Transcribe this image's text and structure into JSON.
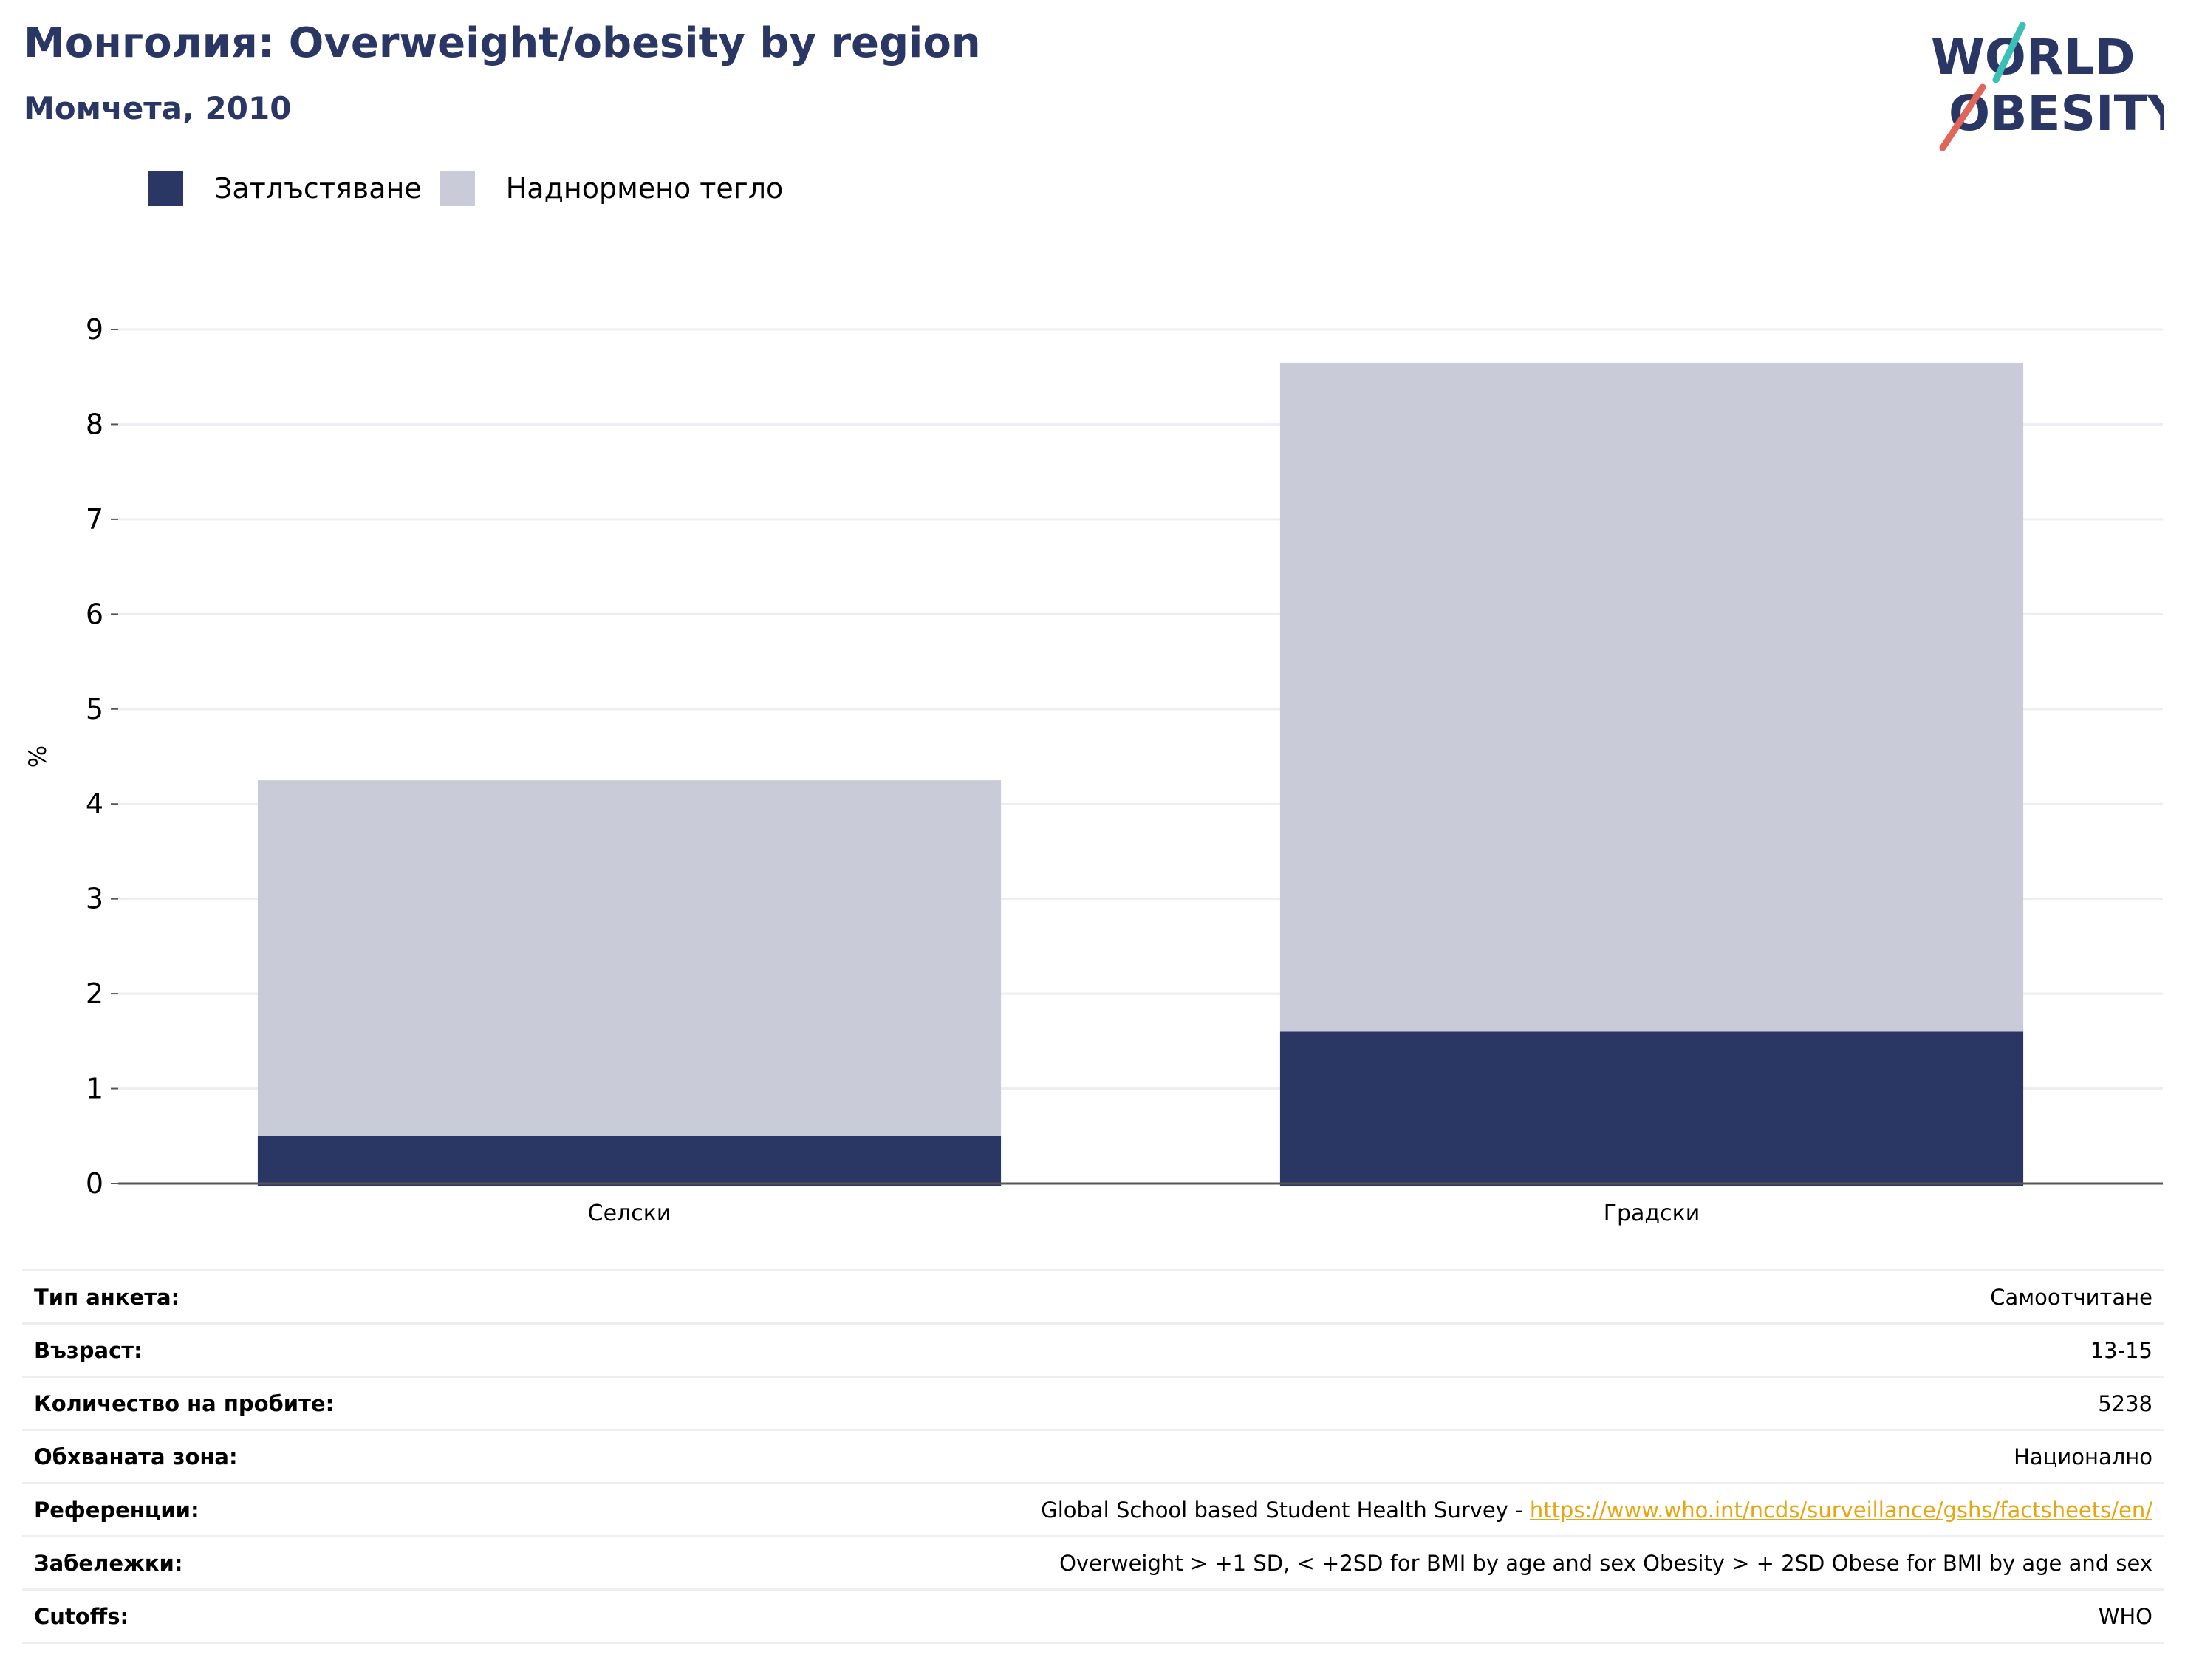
{
  "header": {
    "title": "Монголия: Overweight/obesity by region",
    "subtitle": "Момчета, 2010"
  },
  "logo": {
    "line1": "WORLD",
    "line2": "OBESITY",
    "colors": {
      "text": "#2a3664",
      "slash_top": "#3bbfb6",
      "slash_bottom": "#e0665a"
    }
  },
  "colors": {
    "obesity": "#2a3664",
    "overweight": "#c9ccd8",
    "grid": "#eceef3",
    "axis": "#555555"
  },
  "legend": {
    "items": [
      {
        "label": "Затлъстяване",
        "color": "#2a3664"
      },
      {
        "label": "Наднормено тегло",
        "color": "#c9ccd8"
      }
    ]
  },
  "chart_data": {
    "type": "bar",
    "stacked": true,
    "categories": [
      "Селски",
      "Градски"
    ],
    "series": [
      {
        "name": "Затлъстяване",
        "values": [
          0.5,
          1.6
        ]
      },
      {
        "name": "Наднормено тегло",
        "values": [
          3.75,
          7.05
        ]
      }
    ],
    "totals": [
      4.25,
      8.65
    ],
    "ylabel": "%",
    "xlabel": "",
    "ylim": [
      0,
      9
    ],
    "yticks": [
      "0",
      "1",
      "2",
      "3",
      "4",
      "5",
      "6",
      "7",
      "8",
      "9"
    ],
    "grid": true,
    "legend_position": "top-left"
  },
  "meta": {
    "rows": [
      {
        "key": "Тип анкета:",
        "value": "Самоотчитане"
      },
      {
        "key": "Възраст:",
        "value": "13-15"
      },
      {
        "key": "Количество на пробите:",
        "value": "5238"
      },
      {
        "key": "Обхваната зона:",
        "value": "Национално"
      },
      {
        "key": "Референции:",
        "value": "Global School based Student Health Survey - ",
        "link": "https://www.who.int/ncds/surveillance/gshs/factsheets/en/"
      },
      {
        "key": "Забележки:",
        "value": "Overweight > +1 SD, < +2SD for BMI by age and sex Obesity > + 2SD Obese for BMI by age and sex"
      },
      {
        "key": "Cutoffs:",
        "value": "WHO"
      }
    ]
  }
}
